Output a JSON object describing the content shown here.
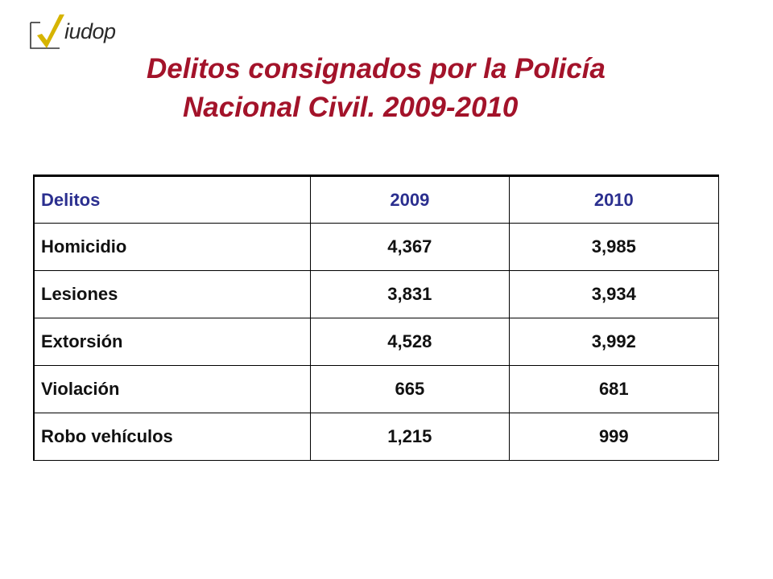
{
  "logo": {
    "text": "iudop",
    "check_color": "#d6b400",
    "box_color": "#333333"
  },
  "title": {
    "line1": "Delitos consignados por la Policía",
    "line2": "Nacional Civil. 2009-2010",
    "color": "#a3132a"
  },
  "table": {
    "headers": [
      "Delitos",
      "2009",
      "2010"
    ],
    "header_color": "#2b2f8f",
    "rows": [
      [
        "Homicidio",
        "4,367",
        "3,985"
      ],
      [
        "Lesiones",
        "3,831",
        "3,934"
      ],
      [
        "Extorsión",
        "4,528",
        "3,992"
      ],
      [
        "Violación",
        "665",
        "681"
      ],
      [
        "Robo vehículos",
        "1,215",
        "999"
      ]
    ]
  }
}
